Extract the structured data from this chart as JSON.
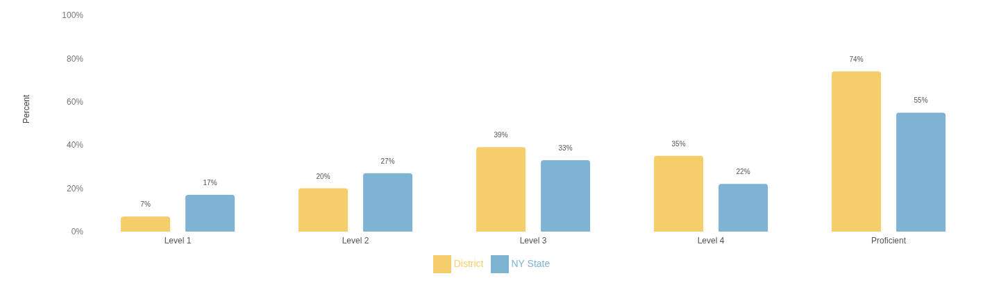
{
  "chart_data": {
    "type": "bar",
    "ylabel": "Percent",
    "categories": [
      "Level 1",
      "Level 2",
      "Level 3",
      "Level 4",
      "Proficient"
    ],
    "series": [
      {
        "name": "District",
        "color": "#f5cd6a",
        "values": [
          7,
          20,
          39,
          35,
          74
        ],
        "value_labels": [
          "7%",
          "20%",
          "39%",
          "35%",
          "74%"
        ]
      },
      {
        "name": "NY State",
        "color": "#7fb3d3",
        "values": [
          17,
          27,
          33,
          22,
          55
        ],
        "value_labels": [
          "17%",
          "27%",
          "33%",
          "22%",
          "55%"
        ]
      }
    ],
    "ylim": [
      0,
      100
    ],
    "yticks": [
      {
        "value": 0,
        "label": "0%"
      },
      {
        "value": 20,
        "label": "20%"
      },
      {
        "value": 40,
        "label": "40%"
      },
      {
        "value": 60,
        "label": "60%"
      },
      {
        "value": 80,
        "label": "80%"
      },
      {
        "value": 100,
        "label": "100%"
      }
    ],
    "legend": "bottom"
  }
}
